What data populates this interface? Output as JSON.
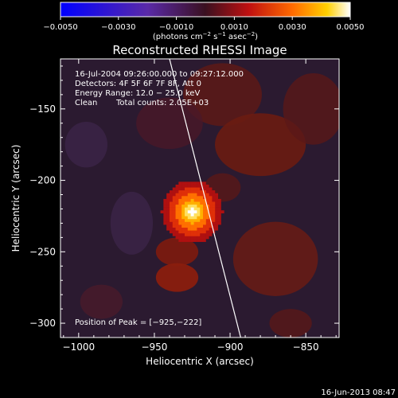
{
  "chart_data": {
    "type": "heatmap",
    "title": "Reconstructed RHESSI Image",
    "xlabel": "Heliocentric X (arcsec)",
    "ylabel": "Heliocentric Y (arcsec)",
    "xlim": [
      -1012,
      -828
    ],
    "ylim": [
      -310,
      -115
    ],
    "xticks": [
      -1000,
      -950,
      -900,
      -850
    ],
    "xtick_labels": [
      "−1000",
      "−950",
      "−900",
      "−850"
    ],
    "yticks": [
      -150,
      -200,
      -250,
      -300
    ],
    "ytick_labels": [
      "−150",
      "−200",
      "−250",
      "−300"
    ],
    "colorbar": {
      "range": [
        -0.005,
        0.005
      ],
      "ticks": [
        -0.005,
        -0.003,
        -0.001,
        0.001,
        0.003,
        0.005
      ],
      "tick_labels": [
        "−0.0050",
        "−0.0030",
        "−0.0010",
        "0.0010",
        "0.0030",
        "0.0050"
      ],
      "unit_prefix": "(photons cm",
      "unit_sup1": "−2",
      "unit_mid": " s",
      "unit_sup2": "−1",
      "unit_mid2": " asec",
      "unit_sup3": "−2",
      "unit_suffix": ")"
    },
    "annotations": {
      "time": "16-Jul-2004 09:26:00.000 to 09:27:12.000",
      "detectors": "Detectors: 4F 5F 6F 7F 8F, Att 0",
      "energy": "Energy Range: 12.0 − 25.0 keV",
      "clean": "Clean",
      "counts": "Total counts: 2.05E+03",
      "peak": "Position of Peak = [−925,−222]"
    },
    "peak_position": [
      -925,
      -222
    ],
    "peak_value": 0.005,
    "limb_line": [
      [
        -940,
        -115
      ],
      [
        -893,
        -310
      ]
    ],
    "footer_date": "16-Jun-2013 08:47"
  }
}
